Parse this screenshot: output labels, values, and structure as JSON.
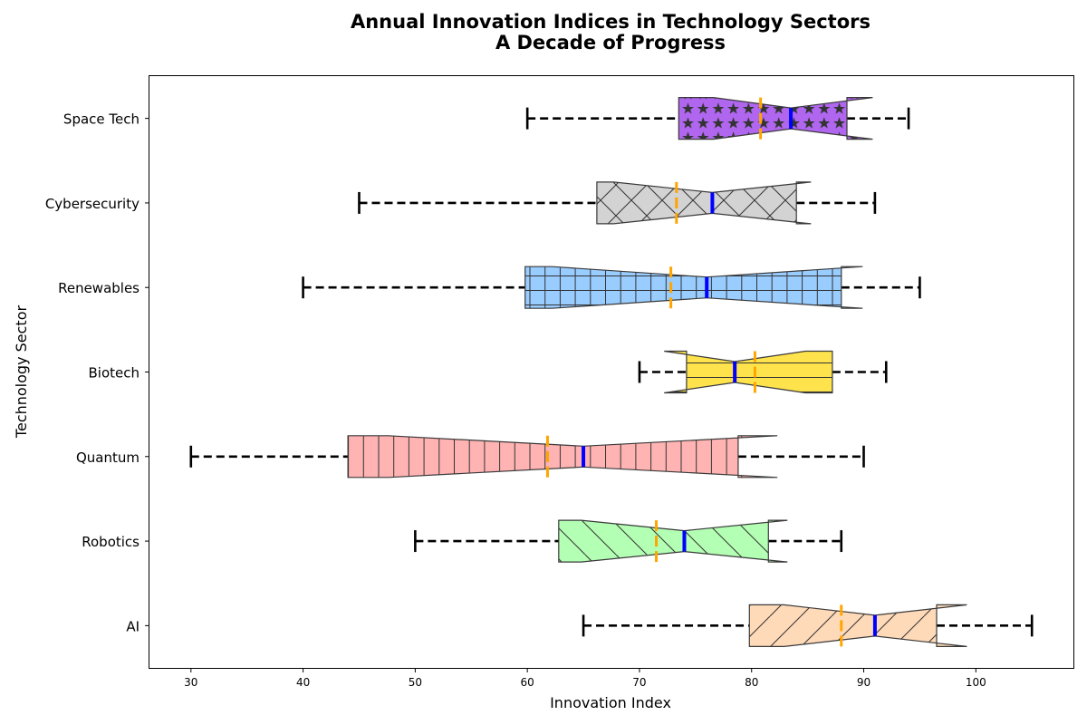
{
  "chart_data": {
    "type": "box",
    "orientation": "horizontal",
    "notched": true,
    "title": "Annual Innovation Indices in Technology Sectors",
    "subtitle": "A Decade of Progress",
    "xlabel": "Innovation Index",
    "ylabel": "Technology Sector",
    "xlim": [
      26.3,
      108.7
    ],
    "xticks": [
      30,
      40,
      50,
      60,
      70,
      80,
      90,
      100
    ],
    "grid": false,
    "median_color": "#0000ff",
    "mean_color": "#ffa500",
    "categories": [
      "AI",
      "Robotics",
      "Quantum",
      "Biotech",
      "Renewables",
      "Cybersecurity",
      "Space Tech"
    ],
    "boxes": [
      {
        "category": "AI",
        "whisker_low": 65,
        "q1": 79.8,
        "median": 91,
        "q3": 96.5,
        "whisker_high": 105,
        "mean": 88,
        "notch_low": 82.9,
        "notch_high": 99.2,
        "color": "#ffdab9",
        "hatch": "diagonal"
      },
      {
        "category": "Robotics",
        "whisker_low": 50,
        "q1": 62.8,
        "median": 74,
        "q3": 81.5,
        "whisker_high": 88,
        "mean": 71.5,
        "notch_low": 64.8,
        "notch_high": 83.2,
        "color": "#b3ffb3",
        "hatch": "antidiagonal"
      },
      {
        "category": "Quantum",
        "whisker_low": 30,
        "q1": 44,
        "median": 65,
        "q3": 78.8,
        "whisker_high": 90,
        "mean": 61.8,
        "notch_low": 47.6,
        "notch_high": 82.3,
        "color": "#ffb3b3",
        "hatch": "vertical"
      },
      {
        "category": "Biotech",
        "whisker_low": 70,
        "q1": 74.2,
        "median": 78.5,
        "q3": 87.2,
        "whisker_high": 92,
        "mean": 80.3,
        "notch_low": 72.2,
        "notch_high": 84.8,
        "color": "#ffe34d",
        "hatch": "horizontal"
      },
      {
        "category": "Renewables",
        "whisker_low": 40,
        "q1": 59.8,
        "median": 76,
        "q3": 88,
        "whisker_high": 95,
        "mean": 72.8,
        "notch_low": 62.2,
        "notch_high": 89.9,
        "color": "#99ccff",
        "hatch": "grid"
      },
      {
        "category": "Cybersecurity",
        "whisker_low": 45,
        "q1": 66.2,
        "median": 76.5,
        "q3": 84,
        "whisker_high": 91,
        "mean": 73.3,
        "notch_low": 67.7,
        "notch_high": 85.3,
        "color": "#d3d3d3",
        "hatch": "crosshatch"
      },
      {
        "category": "Space Tech",
        "whisker_low": 60,
        "q1": 73.5,
        "median": 83.5,
        "q3": 88.5,
        "whisker_high": 94,
        "mean": 80.8,
        "notch_low": 76.6,
        "notch_high": 90.8,
        "color": "#b066ee",
        "hatch": "stars"
      }
    ]
  }
}
